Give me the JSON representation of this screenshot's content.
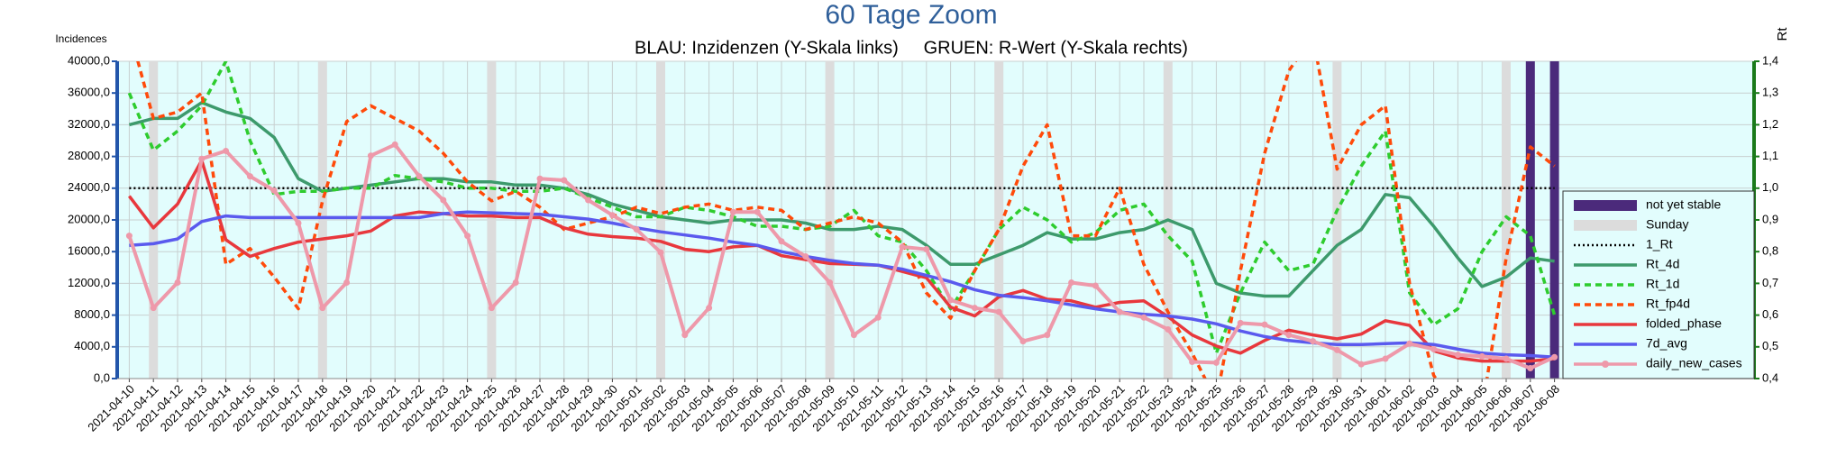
{
  "chart_data": {
    "type": "line",
    "title": "60 Tage Zoom",
    "subtitle": "BLAU: Inzidenzen (Y-Skala links)     GRUEN: R-Wert (Y-Skala rechts)",
    "y_label": "Incidences",
    "y2_label": "Rt",
    "categories": [
      "2021-04-10",
      "2021-04-11",
      "2021-04-12",
      "2021-04-13",
      "2021-04-14",
      "2021-04-15",
      "2021-04-16",
      "2021-04-17",
      "2021-04-18",
      "2021-04-19",
      "2021-04-20",
      "2021-04-21",
      "2021-04-22",
      "2021-04-23",
      "2021-04-24",
      "2021-04-25",
      "2021-04-26",
      "2021-04-27",
      "2021-04-28",
      "2021-04-29",
      "2021-04-30",
      "2021-05-01",
      "2021-05-02",
      "2021-05-03",
      "2021-05-04",
      "2021-05-05",
      "2021-05-06",
      "2021-05-07",
      "2021-05-08",
      "2021-05-09",
      "2021-05-10",
      "2021-05-11",
      "2021-05-12",
      "2021-05-13",
      "2021-05-14",
      "2021-05-15",
      "2021-05-16",
      "2021-05-17",
      "2021-05-18",
      "2021-05-19",
      "2021-05-20",
      "2021-05-21",
      "2021-05-22",
      "2021-05-23",
      "2021-05-24",
      "2021-05-25",
      "2021-05-26",
      "2021-05-27",
      "2021-05-28",
      "2021-05-29",
      "2021-05-30",
      "2021-05-31",
      "2021-06-01",
      "2021-06-02",
      "2021-06-03",
      "2021-06-04",
      "2021-06-05",
      "2021-06-06",
      "2021-06-07",
      "2021-06-08"
    ],
    "ylim": [
      0,
      40000
    ],
    "yticks": [
      {
        "value": 0,
        "label": "0,0"
      },
      {
        "value": 4000,
        "label": "4000,0"
      },
      {
        "value": 8000,
        "label": "8000,0"
      },
      {
        "value": 12000,
        "label": "12000,0"
      },
      {
        "value": 16000,
        "label": "16000,0"
      },
      {
        "value": 20000,
        "label": "20000,0"
      },
      {
        "value": 24000,
        "label": "24000,0"
      },
      {
        "value": 28000,
        "label": "28000,0"
      },
      {
        "value": 32000,
        "label": "32000,0"
      },
      {
        "value": 36000,
        "label": "36000,0"
      },
      {
        "value": 40000,
        "label": "40000,0"
      }
    ],
    "y2lim": [
      0.4,
      1.4
    ],
    "y2ticks": [
      {
        "value": 0.4,
        "label": "0,4"
      },
      {
        "value": 0.5,
        "label": "0,5"
      },
      {
        "value": 0.6,
        "label": "0,6"
      },
      {
        "value": 0.7,
        "label": "0,7"
      },
      {
        "value": 0.8,
        "label": "0,8"
      },
      {
        "value": 0.9,
        "label": "0,9"
      },
      {
        "value": 1.0,
        "label": "1,0"
      },
      {
        "value": 1.1,
        "label": "1,1"
      },
      {
        "value": 1.2,
        "label": "1,2"
      },
      {
        "value": 1.3,
        "label": "1,3"
      },
      {
        "value": 1.4,
        "label": "1,4"
      }
    ],
    "grid": true,
    "legend": "lower right",
    "series": [
      {
        "name": "not yet stable",
        "color": "#4b2a7b",
        "kind": "bar",
        "values": [
          null,
          null,
          null,
          null,
          null,
          null,
          null,
          null,
          null,
          null,
          null,
          null,
          null,
          null,
          null,
          null,
          null,
          null,
          null,
          null,
          null,
          null,
          null,
          null,
          null,
          null,
          null,
          null,
          null,
          null,
          null,
          null,
          null,
          null,
          null,
          null,
          null,
          null,
          null,
          null,
          null,
          null,
          null,
          null,
          null,
          null,
          null,
          null,
          null,
          null,
          null,
          null,
          null,
          null,
          null,
          null,
          null,
          40000,
          40000,
          40000
        ]
      },
      {
        "name": "Sunday",
        "color": "#dcdcdc",
        "kind": "bar",
        "values": [
          null,
          40000,
          null,
          null,
          null,
          null,
          null,
          null,
          40000,
          null,
          null,
          null,
          null,
          null,
          null,
          40000,
          null,
          null,
          null,
          null,
          null,
          null,
          40000,
          null,
          null,
          null,
          null,
          null,
          null,
          40000,
          null,
          null,
          null,
          null,
          null,
          null,
          40000,
          null,
          null,
          null,
          null,
          null,
          null,
          40000,
          null,
          null,
          null,
          null,
          null,
          null,
          40000,
          null,
          null,
          null,
          null,
          null,
          null,
          40000,
          null,
          null
        ]
      },
      {
        "name": "1_Rt",
        "color": "#000000",
        "kind": "line",
        "style": "dotted",
        "axis": "y2",
        "values": [
          1.0,
          1.0,
          1.0,
          1.0,
          1.0,
          1.0,
          1.0,
          1.0,
          1.0,
          1.0,
          1.0,
          1.0,
          1.0,
          1.0,
          1.0,
          1.0,
          1.0,
          1.0,
          1.0,
          1.0,
          1.0,
          1.0,
          1.0,
          1.0,
          1.0,
          1.0,
          1.0,
          1.0,
          1.0,
          1.0,
          1.0,
          1.0,
          1.0,
          1.0,
          1.0,
          1.0,
          1.0,
          1.0,
          1.0,
          1.0,
          1.0,
          1.0,
          1.0,
          1.0,
          1.0,
          1.0,
          1.0,
          1.0,
          1.0,
          1.0,
          1.0,
          1.0,
          1.0,
          1.0,
          1.0,
          1.0,
          1.0,
          1.0,
          1.0,
          1.0
        ]
      },
      {
        "name": "Rt_4d",
        "color": "#3d9a6c",
        "kind": "line",
        "style": "solid",
        "axis": "y2",
        "values": [
          1.2,
          1.22,
          1.22,
          1.27,
          1.24,
          1.22,
          1.16,
          1.03,
          0.99,
          1.0,
          1.01,
          1.02,
          1.03,
          1.03,
          1.02,
          1.02,
          1.01,
          1.01,
          1.0,
          0.98,
          0.95,
          0.93,
          0.91,
          0.9,
          0.89,
          0.9,
          0.9,
          0.9,
          0.89,
          0.87,
          0.87,
          0.88,
          0.87,
          0.82,
          0.76,
          0.76,
          0.79,
          0.82,
          0.86,
          0.84,
          0.84,
          0.86,
          0.87,
          0.9,
          0.87,
          0.7,
          0.67,
          0.66,
          0.66,
          0.74,
          0.82,
          0.87,
          0.98,
          0.97,
          0.88,
          0.78,
          0.69,
          0.72,
          0.78,
          0.77
        ]
      },
      {
        "name": "Rt_1d",
        "color": "#2ecc2e",
        "kind": "line",
        "style": "dashed",
        "axis": "y2",
        "values": [
          1.3,
          1.12,
          1.18,
          1.26,
          1.4,
          1.15,
          0.98,
          0.99,
          0.99,
          1.0,
          1.0,
          1.04,
          1.03,
          1.02,
          1.0,
          1.0,
          0.99,
          0.99,
          1.0,
          0.97,
          0.94,
          0.91,
          0.91,
          0.94,
          0.93,
          0.91,
          0.88,
          0.88,
          0.87,
          0.88,
          0.93,
          0.85,
          0.83,
          0.74,
          0.62,
          0.74,
          0.87,
          0.94,
          0.9,
          0.83,
          0.86,
          0.93,
          0.95,
          0.85,
          0.77,
          0.48,
          0.67,
          0.83,
          0.74,
          0.76,
          0.93,
          1.07,
          1.18,
          0.67,
          0.57,
          0.62,
          0.8,
          0.91,
          0.85,
          0.6
        ]
      },
      {
        "name": "Rt_fp4d",
        "color": "#ff4a0a",
        "kind": "line",
        "style": "dashed",
        "axis": "y2",
        "values": [
          1.5,
          1.22,
          1.24,
          1.3,
          0.76,
          0.81,
          0.72,
          0.62,
          0.96,
          1.21,
          1.26,
          1.22,
          1.18,
          1.11,
          1.02,
          0.96,
          0.99,
          0.94,
          0.87,
          0.89,
          0.91,
          0.94,
          0.92,
          0.94,
          0.95,
          0.93,
          0.94,
          0.93,
          0.87,
          0.89,
          0.91,
          0.89,
          0.83,
          0.67,
          0.59,
          0.74,
          0.87,
          1.07,
          1.2,
          0.85,
          0.85,
          1.0,
          0.76,
          0.61,
          0.48,
          0.33,
          0.74,
          1.11,
          1.37,
          1.48,
          1.06,
          1.2,
          1.26,
          0.7,
          0.41,
          0.3,
          0.3,
          0.78,
          1.13,
          1.07
        ]
      },
      {
        "name": "folded_phase",
        "color": "#e8383d",
        "kind": "line",
        "style": "solid",
        "values": [
          23000,
          19000,
          22000,
          27500,
          17500,
          15400,
          16400,
          17200,
          17600,
          18000,
          18600,
          20500,
          21000,
          20800,
          20500,
          20500,
          20300,
          20300,
          19000,
          18200,
          17900,
          17700,
          17300,
          16300,
          16000,
          16600,
          16800,
          15500,
          15000,
          14500,
          14400,
          14300,
          13500,
          12700,
          9000,
          7900,
          10300,
          11100,
          10000,
          9800,
          9000,
          9600,
          9800,
          7800,
          5500,
          4100,
          3200,
          4800,
          6100,
          5500,
          5000,
          5600,
          7300,
          6700,
          3500,
          2600,
          2200,
          2200,
          2200,
          2500
        ]
      },
      {
        "name": "7d_avg",
        "color": "#5a5aee",
        "kind": "line",
        "style": "solid",
        "values": [
          16800,
          17000,
          17600,
          19800,
          20500,
          20300,
          20300,
          20300,
          20300,
          20300,
          20300,
          20300,
          20300,
          20800,
          21000,
          20900,
          20800,
          20700,
          20400,
          20100,
          19600,
          19000,
          18500,
          18100,
          17700,
          17200,
          16800,
          16000,
          15400,
          14900,
          14500,
          14300,
          13800,
          13000,
          12200,
          11200,
          10500,
          10200,
          9800,
          9300,
          8800,
          8400,
          8100,
          7900,
          7500,
          6900,
          6000,
          5300,
          4800,
          4500,
          4300,
          4300,
          4400,
          4500,
          4300,
          3700,
          3200,
          3000,
          2900,
          2700
        ]
      },
      {
        "name": "daily_new_cases",
        "color": "#ee99aa",
        "kind": "line",
        "style": "solid",
        "marker": true,
        "values": [
          18000,
          8900,
          12100,
          27700,
          28700,
          25500,
          23700,
          19600,
          8900,
          12100,
          28100,
          29500,
          25500,
          22500,
          18000,
          8900,
          12100,
          25200,
          25000,
          22500,
          20600,
          18800,
          15900,
          5500,
          8900,
          21000,
          21000,
          17300,
          15400,
          12100,
          5500,
          7700,
          16600,
          16300,
          9900,
          8900,
          8400,
          4700,
          5500,
          12100,
          11700,
          8400,
          7700,
          6200,
          2100,
          2000,
          7000,
          6800,
          5500,
          4700,
          3600,
          1800,
          2500,
          4400,
          3700,
          3000,
          2800,
          2500,
          1300,
          2700
        ]
      }
    ]
  }
}
